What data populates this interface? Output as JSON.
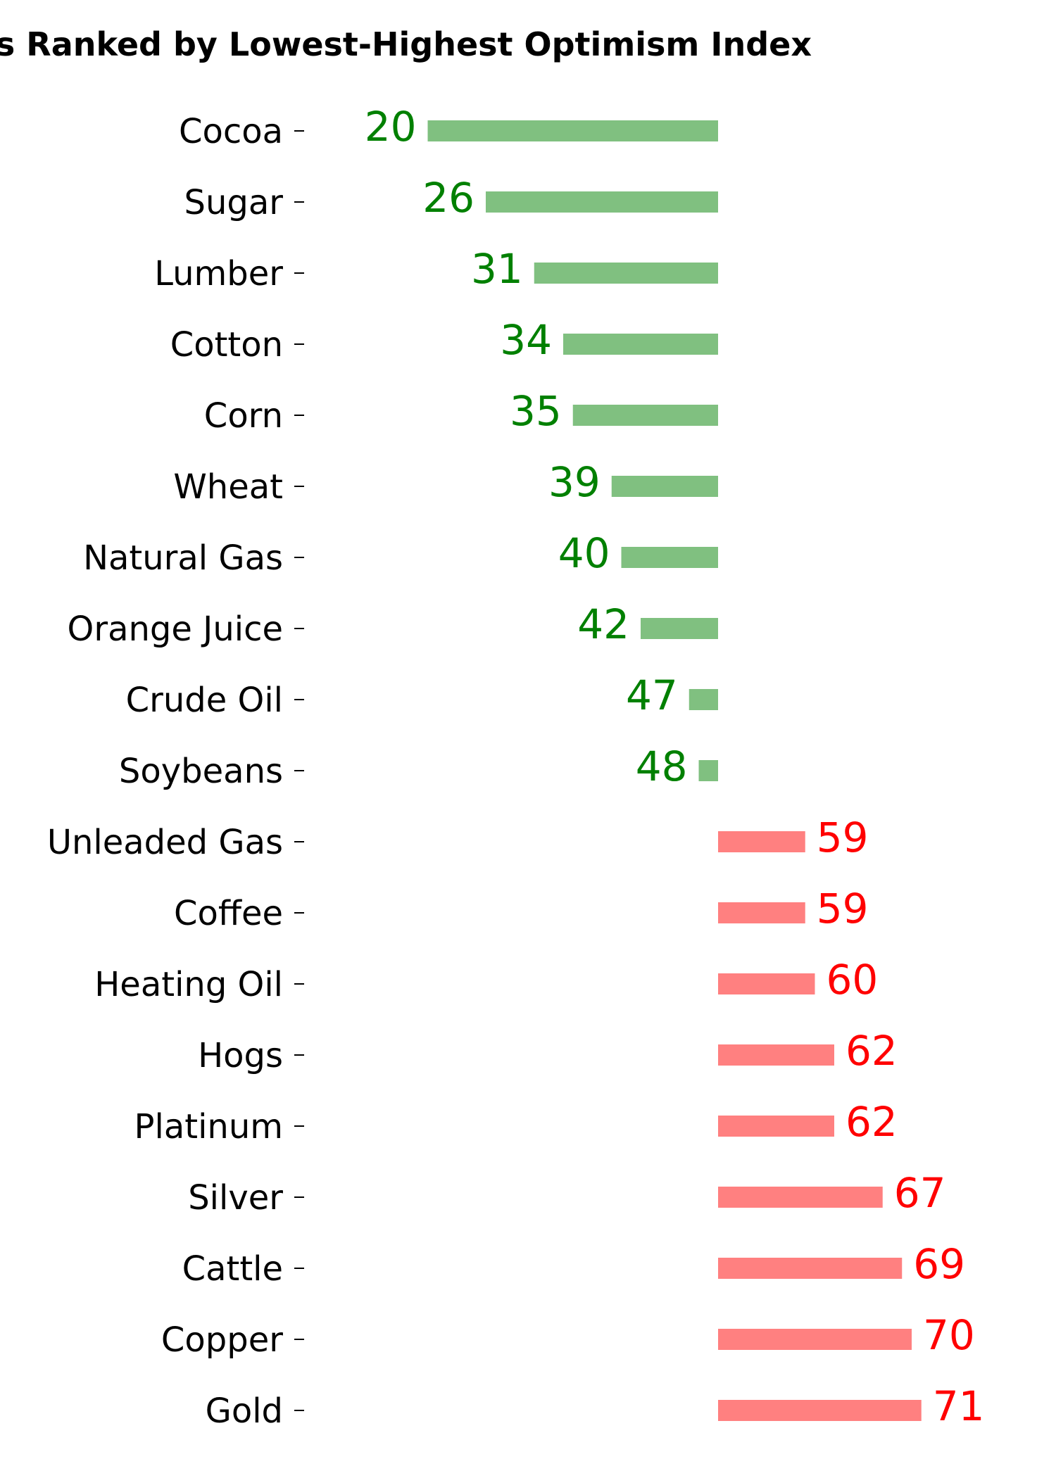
{
  "chart_data": {
    "type": "bar",
    "orientation": "horizontal",
    "title": "es Ranked by Lowest-Highest Optimism Index",
    "baseline": 50,
    "categories": [
      "Cocoa",
      "Sugar",
      "Lumber",
      "Cotton",
      "Corn",
      "Wheat",
      "Natural Gas",
      "Orange Juice",
      "Crude Oil",
      "Soybeans",
      "Unleaded Gas",
      "Coffee",
      "Heating Oil",
      "Hogs",
      "Platinum",
      "Silver",
      "Cattle",
      "Copper",
      "Gold"
    ],
    "values": [
      20,
      26,
      31,
      34,
      35,
      39,
      40,
      42,
      47,
      48,
      59,
      59,
      60,
      62,
      62,
      67,
      69,
      70,
      71
    ],
    "colors": {
      "below_bar": "#80c080",
      "below_text": "#008000",
      "above_bar": "#ff8080",
      "above_text": "#ff0000"
    },
    "grid": false,
    "legend": "none"
  }
}
